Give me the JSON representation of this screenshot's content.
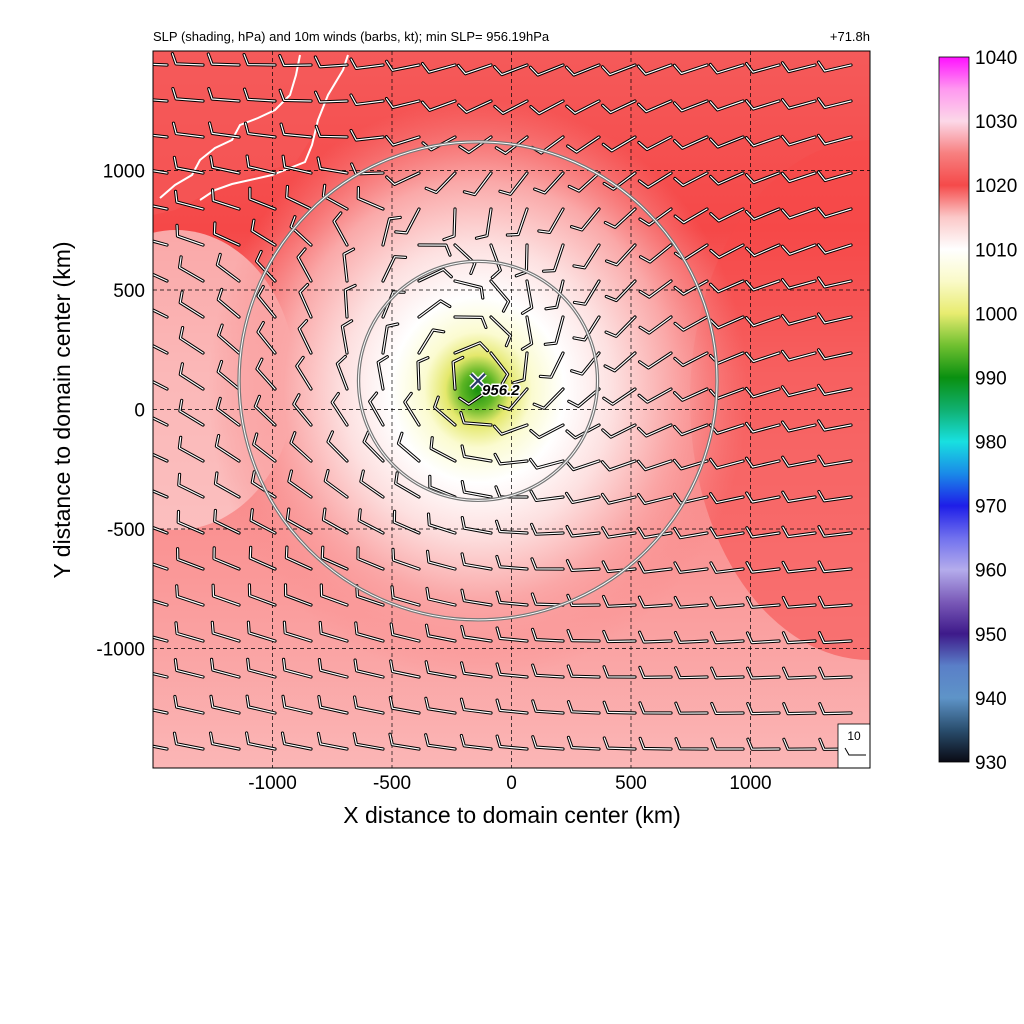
{
  "chart_data": {
    "type": "heatmap",
    "title": "SLP (shading, hPa) and 10m winds (barbs, kt); min SLP= 956.19hPa",
    "forecast_hour_label": "+71.8h",
    "xlabel": "X distance to domain center (km)",
    "ylabel": "Y distance to domain center (km)",
    "xlim": [
      -1500,
      1500
    ],
    "ylim": [
      -1500,
      1500
    ],
    "x_ticks": [
      -1000,
      -500,
      0,
      500,
      1000
    ],
    "y_ticks": [
      1000,
      500,
      0,
      -500,
      -1000
    ],
    "x_tick_labels": [
      "-1000",
      "-500",
      "0",
      "500",
      "1000"
    ],
    "y_tick_labels": [
      "1000",
      "500",
      "0",
      "-500",
      "-1000"
    ],
    "grid": "dashed",
    "colorbar": {
      "label_values": [
        1040,
        1030,
        1020,
        1010,
        1000,
        990,
        980,
        970,
        960,
        950,
        940,
        930
      ],
      "range": [
        930,
        1040
      ],
      "stops": [
        {
          "v": 930,
          "c": "#0a0a14"
        },
        {
          "v": 935,
          "c": "#2a4e6e"
        },
        {
          "v": 940,
          "c": "#5e94c8"
        },
        {
          "v": 945,
          "c": "#5a7fc8"
        },
        {
          "v": 950,
          "c": "#3e1a8a"
        },
        {
          "v": 955,
          "c": "#7a5ab8"
        },
        {
          "v": 960,
          "c": "#b4acec"
        },
        {
          "v": 965,
          "c": "#7070ee"
        },
        {
          "v": 970,
          "c": "#1e1ee8"
        },
        {
          "v": 975,
          "c": "#1a8ae8"
        },
        {
          "v": 980,
          "c": "#18e0e0"
        },
        {
          "v": 985,
          "c": "#10b070"
        },
        {
          "v": 990,
          "c": "#0a9010"
        },
        {
          "v": 995,
          "c": "#70c030"
        },
        {
          "v": 1000,
          "c": "#e8ec70"
        },
        {
          "v": 1005,
          "c": "#fafac8"
        },
        {
          "v": 1010,
          "c": "#ffffff"
        },
        {
          "v": 1015,
          "c": "#fbc8c8"
        },
        {
          "v": 1020,
          "c": "#f54a4a"
        },
        {
          "v": 1025,
          "c": "#f78080"
        },
        {
          "v": 1030,
          "c": "#fcd8e8"
        },
        {
          "v": 1035,
          "c": "#ff98f0"
        },
        {
          "v": 1040,
          "c": "#ff10ff"
        }
      ]
    },
    "storm_center": {
      "x_km": -140,
      "y_km": 120,
      "min_slp_label": "956.2"
    },
    "range_rings_km": [
      500,
      1000
    ],
    "reference_barb_label": "10"
  }
}
